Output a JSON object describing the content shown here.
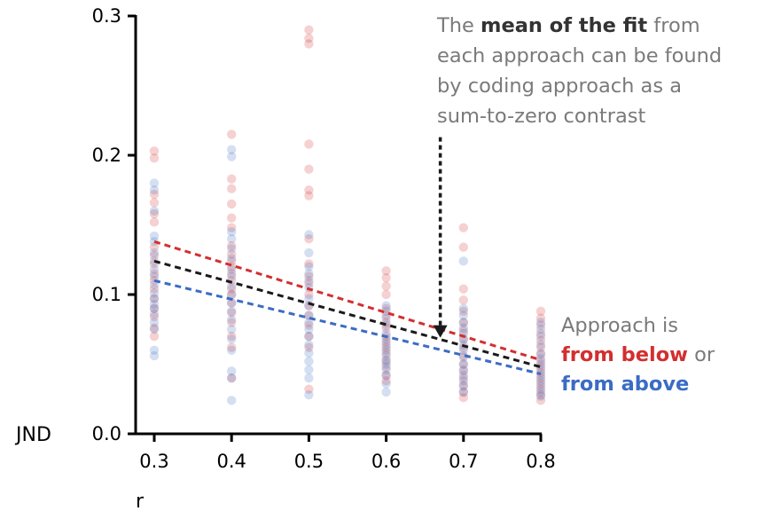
{
  "chart_data": {
    "type": "scatter",
    "xlabel": "r",
    "ylabel": "JND",
    "xlim": [
      0.3,
      0.8
    ],
    "ylim": [
      0.0,
      0.3
    ],
    "xticks": [
      "0.3",
      "0.4",
      "0.5",
      "0.6",
      "0.7",
      "0.8"
    ],
    "yticks": [
      "0.0",
      "0.1",
      "0.2",
      "0.3"
    ],
    "grid": false,
    "series": [
      {
        "name": "from below",
        "color": "#d32f2f",
        "points": [
          [
            0.3,
            0.203
          ],
          [
            0.3,
            0.198
          ],
          [
            0.3,
            0.172
          ],
          [
            0.3,
            0.166
          ],
          [
            0.3,
            0.158
          ],
          [
            0.3,
            0.152
          ],
          [
            0.3,
            0.134
          ],
          [
            0.3,
            0.128
          ],
          [
            0.3,
            0.122
          ],
          [
            0.3,
            0.115
          ],
          [
            0.3,
            0.11
          ],
          [
            0.3,
            0.104
          ],
          [
            0.3,
            0.097
          ],
          [
            0.3,
            0.09
          ],
          [
            0.3,
            0.084
          ],
          [
            0.3,
            0.076
          ],
          [
            0.3,
            0.07
          ],
          [
            0.4,
            0.215
          ],
          [
            0.4,
            0.183
          ],
          [
            0.4,
            0.176
          ],
          [
            0.4,
            0.165
          ],
          [
            0.4,
            0.155
          ],
          [
            0.4,
            0.148
          ],
          [
            0.4,
            0.135
          ],
          [
            0.4,
            0.129
          ],
          [
            0.4,
            0.124
          ],
          [
            0.4,
            0.12
          ],
          [
            0.4,
            0.115
          ],
          [
            0.4,
            0.11
          ],
          [
            0.4,
            0.104
          ],
          [
            0.4,
            0.1
          ],
          [
            0.4,
            0.094
          ],
          [
            0.4,
            0.087
          ],
          [
            0.4,
            0.08
          ],
          [
            0.4,
            0.07
          ],
          [
            0.4,
            0.062
          ],
          [
            0.4,
            0.04
          ],
          [
            0.5,
            0.29
          ],
          [
            0.5,
            0.284
          ],
          [
            0.5,
            0.28
          ],
          [
            0.5,
            0.208
          ],
          [
            0.5,
            0.19
          ],
          [
            0.5,
            0.175
          ],
          [
            0.5,
            0.171
          ],
          [
            0.5,
            0.14
          ],
          [
            0.5,
            0.122
          ],
          [
            0.5,
            0.113
          ],
          [
            0.5,
            0.108
          ],
          [
            0.5,
            0.1
          ],
          [
            0.5,
            0.092
          ],
          [
            0.5,
            0.085
          ],
          [
            0.5,
            0.078
          ],
          [
            0.5,
            0.07
          ],
          [
            0.5,
            0.062
          ],
          [
            0.5,
            0.032
          ],
          [
            0.6,
            0.117
          ],
          [
            0.6,
            0.112
          ],
          [
            0.6,
            0.106
          ],
          [
            0.6,
            0.1
          ],
          [
            0.6,
            0.09
          ],
          [
            0.6,
            0.085
          ],
          [
            0.6,
            0.08
          ],
          [
            0.6,
            0.076
          ],
          [
            0.6,
            0.07
          ],
          [
            0.6,
            0.066
          ],
          [
            0.6,
            0.062
          ],
          [
            0.6,
            0.058
          ],
          [
            0.6,
            0.053
          ],
          [
            0.6,
            0.048
          ],
          [
            0.6,
            0.042
          ],
          [
            0.6,
            0.038
          ],
          [
            0.7,
            0.148
          ],
          [
            0.7,
            0.134
          ],
          [
            0.7,
            0.104
          ],
          [
            0.7,
            0.096
          ],
          [
            0.7,
            0.088
          ],
          [
            0.7,
            0.08
          ],
          [
            0.7,
            0.074
          ],
          [
            0.7,
            0.068
          ],
          [
            0.7,
            0.062
          ],
          [
            0.7,
            0.056
          ],
          [
            0.7,
            0.05
          ],
          [
            0.7,
            0.045
          ],
          [
            0.7,
            0.04
          ],
          [
            0.7,
            0.035
          ],
          [
            0.7,
            0.03
          ],
          [
            0.7,
            0.026
          ],
          [
            0.8,
            0.088
          ],
          [
            0.8,
            0.083
          ],
          [
            0.8,
            0.078
          ],
          [
            0.8,
            0.072
          ],
          [
            0.8,
            0.067
          ],
          [
            0.8,
            0.062
          ],
          [
            0.8,
            0.057
          ],
          [
            0.8,
            0.052
          ],
          [
            0.8,
            0.048
          ],
          [
            0.8,
            0.044
          ],
          [
            0.8,
            0.04
          ],
          [
            0.8,
            0.036
          ],
          [
            0.8,
            0.032
          ],
          [
            0.8,
            0.028
          ],
          [
            0.8,
            0.024
          ]
        ],
        "fit": [
          [
            0.3,
            0.138
          ],
          [
            0.8,
            0.053
          ]
        ]
      },
      {
        "name": "from above",
        "color": "#3b6cc5",
        "points": [
          [
            0.3,
            0.18
          ],
          [
            0.3,
            0.175
          ],
          [
            0.3,
            0.16
          ],
          [
            0.3,
            0.142
          ],
          [
            0.3,
            0.138
          ],
          [
            0.3,
            0.13
          ],
          [
            0.3,
            0.124
          ],
          [
            0.3,
            0.118
          ],
          [
            0.3,
            0.113
          ],
          [
            0.3,
            0.107
          ],
          [
            0.3,
            0.101
          ],
          [
            0.3,
            0.097
          ],
          [
            0.3,
            0.093
          ],
          [
            0.3,
            0.09
          ],
          [
            0.3,
            0.086
          ],
          [
            0.3,
            0.08
          ],
          [
            0.3,
            0.075
          ],
          [
            0.3,
            0.06
          ],
          [
            0.3,
            0.056
          ],
          [
            0.4,
            0.204
          ],
          [
            0.4,
            0.199
          ],
          [
            0.4,
            0.145
          ],
          [
            0.4,
            0.14
          ],
          [
            0.4,
            0.133
          ],
          [
            0.4,
            0.126
          ],
          [
            0.4,
            0.118
          ],
          [
            0.4,
            0.113
          ],
          [
            0.4,
            0.106
          ],
          [
            0.4,
            0.1
          ],
          [
            0.4,
            0.094
          ],
          [
            0.4,
            0.088
          ],
          [
            0.4,
            0.082
          ],
          [
            0.4,
            0.075
          ],
          [
            0.4,
            0.068
          ],
          [
            0.4,
            0.06
          ],
          [
            0.4,
            0.045
          ],
          [
            0.4,
            0.04
          ],
          [
            0.4,
            0.024
          ],
          [
            0.5,
            0.143
          ],
          [
            0.5,
            0.13
          ],
          [
            0.5,
            0.12
          ],
          [
            0.5,
            0.115
          ],
          [
            0.5,
            0.11
          ],
          [
            0.5,
            0.105
          ],
          [
            0.5,
            0.097
          ],
          [
            0.5,
            0.092
          ],
          [
            0.5,
            0.085
          ],
          [
            0.5,
            0.08
          ],
          [
            0.5,
            0.075
          ],
          [
            0.5,
            0.07
          ],
          [
            0.5,
            0.064
          ],
          [
            0.5,
            0.058
          ],
          [
            0.5,
            0.052
          ],
          [
            0.5,
            0.046
          ],
          [
            0.5,
            0.04
          ],
          [
            0.5,
            0.028
          ],
          [
            0.6,
            0.092
          ],
          [
            0.6,
            0.088
          ],
          [
            0.6,
            0.083
          ],
          [
            0.6,
            0.078
          ],
          [
            0.6,
            0.072
          ],
          [
            0.6,
            0.068
          ],
          [
            0.6,
            0.064
          ],
          [
            0.6,
            0.06
          ],
          [
            0.6,
            0.056
          ],
          [
            0.6,
            0.052
          ],
          [
            0.6,
            0.05
          ],
          [
            0.6,
            0.046
          ],
          [
            0.6,
            0.042
          ],
          [
            0.6,
            0.036
          ],
          [
            0.6,
            0.03
          ],
          [
            0.7,
            0.124
          ],
          [
            0.7,
            0.09
          ],
          [
            0.7,
            0.085
          ],
          [
            0.7,
            0.08
          ],
          [
            0.7,
            0.076
          ],
          [
            0.7,
            0.072
          ],
          [
            0.7,
            0.068
          ],
          [
            0.7,
            0.064
          ],
          [
            0.7,
            0.06
          ],
          [
            0.7,
            0.055
          ],
          [
            0.7,
            0.05
          ],
          [
            0.7,
            0.046
          ],
          [
            0.7,
            0.042
          ],
          [
            0.7,
            0.038
          ],
          [
            0.7,
            0.034
          ],
          [
            0.7,
            0.03
          ],
          [
            0.8,
            0.08
          ],
          [
            0.8,
            0.075
          ],
          [
            0.8,
            0.07
          ],
          [
            0.8,
            0.064
          ],
          [
            0.8,
            0.058
          ],
          [
            0.8,
            0.054
          ],
          [
            0.8,
            0.05
          ],
          [
            0.8,
            0.046
          ],
          [
            0.8,
            0.042
          ],
          [
            0.8,
            0.038
          ],
          [
            0.8,
            0.034
          ],
          [
            0.8,
            0.03
          ],
          [
            0.8,
            0.027
          ]
        ],
        "fit": [
          [
            0.3,
            0.11
          ],
          [
            0.8,
            0.043
          ]
        ]
      }
    ],
    "mean_fit": {
      "color": "#1a1a1a",
      "fit": [
        [
          0.3,
          0.124
        ],
        [
          0.8,
          0.048
        ]
      ]
    },
    "annotations": {
      "top": [
        [
          {
            "text": "The ",
            "bold": false
          },
          {
            "text": "mean of the fit",
            "bold": true
          },
          {
            "text": " from",
            "bold": false
          }
        ],
        [
          {
            "text": "each approach can be found",
            "bold": false
          }
        ],
        [
          {
            "text": "by coding approach as a",
            "bold": false
          }
        ],
        [
          {
            "text": "sum-to-zero contrast",
            "bold": false
          }
        ]
      ],
      "arrow": {
        "x": 0.67,
        "y_from": 0.213,
        "y_to": 0.069
      },
      "legend_line1": "Approach is",
      "legend_below_label": "from below",
      "legend_or": " or",
      "legend_above_label": "from above"
    }
  }
}
